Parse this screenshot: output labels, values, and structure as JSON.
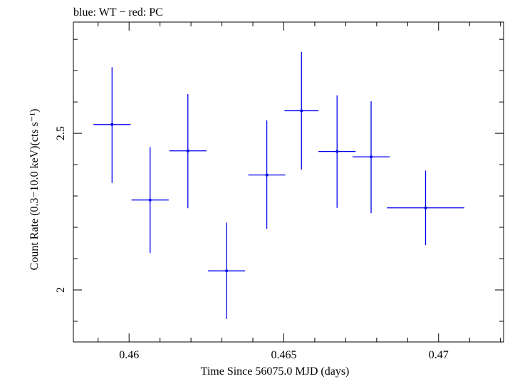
{
  "chart_data": {
    "type": "scatter",
    "title": "blue: WT − red: PC",
    "xlabel": "Time Since 56075.0 MJD (days)",
    "ylabel": "Count Rate (0.3−10.0 keV)(cts s⁻¹)",
    "xlim": [
      0.4582,
      0.4721
    ],
    "ylim": [
      1.834,
      2.855
    ],
    "x_ticks": [
      0.46,
      0.465,
      0.47
    ],
    "x_tick_labels": [
      "0.46",
      "0.465",
      "0.47"
    ],
    "y_ticks": [
      2,
      2.5
    ],
    "y_tick_labels": [
      "2",
      "2.5"
    ],
    "grid": false,
    "series": [
      {
        "color": "#0000ee",
        "points": [
          {
            "x": 0.45945,
            "y": 2.528,
            "xerr": 0.0006,
            "yerr": [
              0.186,
              0.183
            ]
          },
          {
            "x": 0.46068,
            "y": 2.287,
            "xerr": 0.0006,
            "yerr": [
              0.169,
              0.169
            ]
          },
          {
            "x": 0.4619,
            "y": 2.444,
            "xerr": 0.0006,
            "yerr": [
              0.183,
              0.181
            ]
          },
          {
            "x": 0.46315,
            "y": 2.061,
            "xerr": 0.0006,
            "yerr": [
              0.154,
              0.154
            ]
          },
          {
            "x": 0.46445,
            "y": 2.367,
            "xerr": 0.0006,
            "yerr": [
              0.172,
              0.174
            ]
          },
          {
            "x": 0.46557,
            "y": 2.572,
            "xerr": 0.00055,
            "yerr": [
              0.188,
              0.188
            ]
          },
          {
            "x": 0.46672,
            "y": 2.442,
            "xerr": 0.0006,
            "yerr": [
              0.18,
              0.179
            ]
          },
          {
            "x": 0.46782,
            "y": 2.425,
            "xerr": 0.0006,
            "yerr": [
              0.18,
              0.177
            ]
          },
          {
            "x": 0.46958,
            "y": 2.262,
            "xerr": 0.00125,
            "yerr": [
              0.119,
              0.119
            ]
          }
        ]
      }
    ]
  }
}
